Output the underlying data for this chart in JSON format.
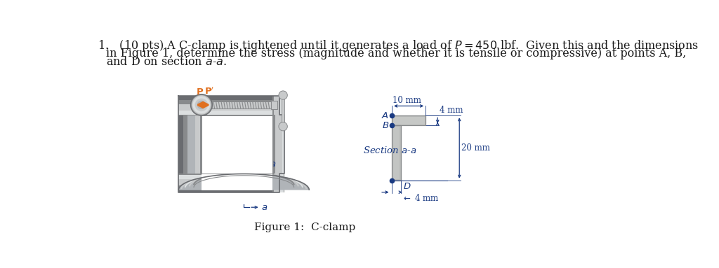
{
  "bg": "#ffffff",
  "black": "#1a1a1a",
  "blue": "#1a3a82",
  "orange": "#e07020",
  "clamp_base": "#b0b4b8",
  "clamp_mid": "#c8cacb",
  "clamp_light": "#dcdfe0",
  "clamp_dark": "#888a8c",
  "clamp_shadow": "#6a6c70",
  "t_fill": "#b8bab8",
  "t_light": "#d4d6d4",
  "fs_body": 11.5,
  "fs_dim": 8.5,
  "fs_label": 9.5,
  "fs_caption": 11.0,
  "line1": "1.\\u2003(10 pts) A C-clamp is tightened until it generates a load of $P = 450$ lbf.  Given this and the dimensions",
  "line2": "in Figure 1, determine the stress (magnitude and whether it is tensile or compressive) at points A, B,",
  "line3": "and D on section $a$-$a$.",
  "caption": "Figure 1:  C-clamp"
}
